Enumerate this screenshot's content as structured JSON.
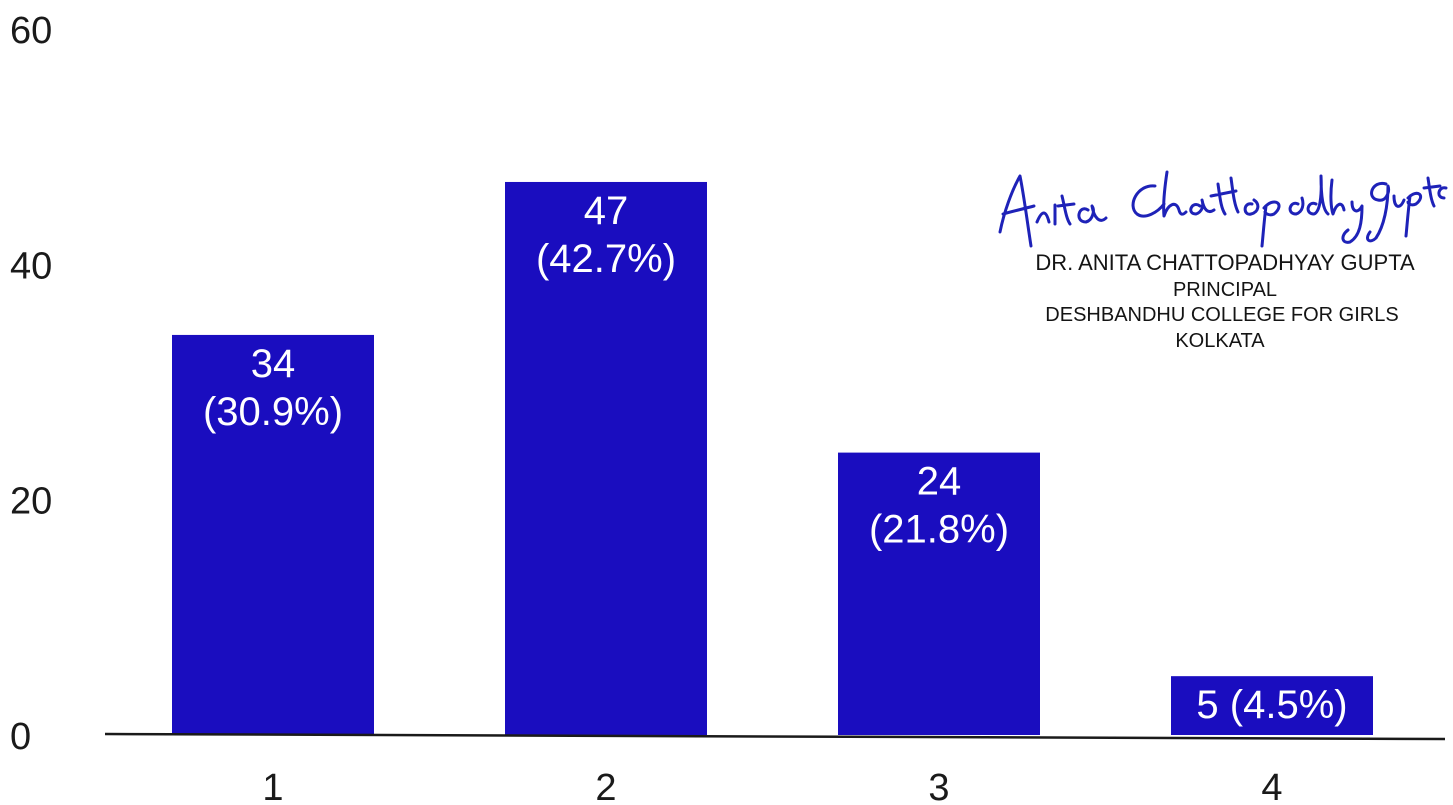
{
  "chart_data": {
    "type": "bar",
    "categories": [
      "1",
      "2",
      "3",
      "4"
    ],
    "values": [
      34,
      47,
      24,
      5
    ],
    "data_labels": [
      [
        "34",
        "(30.9%)"
      ],
      [
        "47",
        "(42.7%)"
      ],
      [
        "24",
        "(21.8%)"
      ],
      [
        "5 (4.5%)"
      ]
    ],
    "percentages": [
      30.9,
      42.7,
      21.8,
      4.5
    ],
    "y_ticks": [
      0,
      20,
      40,
      60
    ],
    "ylim": [
      0,
      60
    ],
    "grid": false,
    "bar_color": "#1a0dbf",
    "label_color": "#ffffff"
  },
  "signature": {
    "name": "DR. ANITA CHATTOPADHYAY GUPTA",
    "title": "PRINCIPAL",
    "institution": "DESHBANDHU COLLEGE FOR GIRLS",
    "city": "KOLKATA",
    "handwritten": "Anita Chattopadhyay Gupta",
    "ink_color": "#1e22b8"
  }
}
